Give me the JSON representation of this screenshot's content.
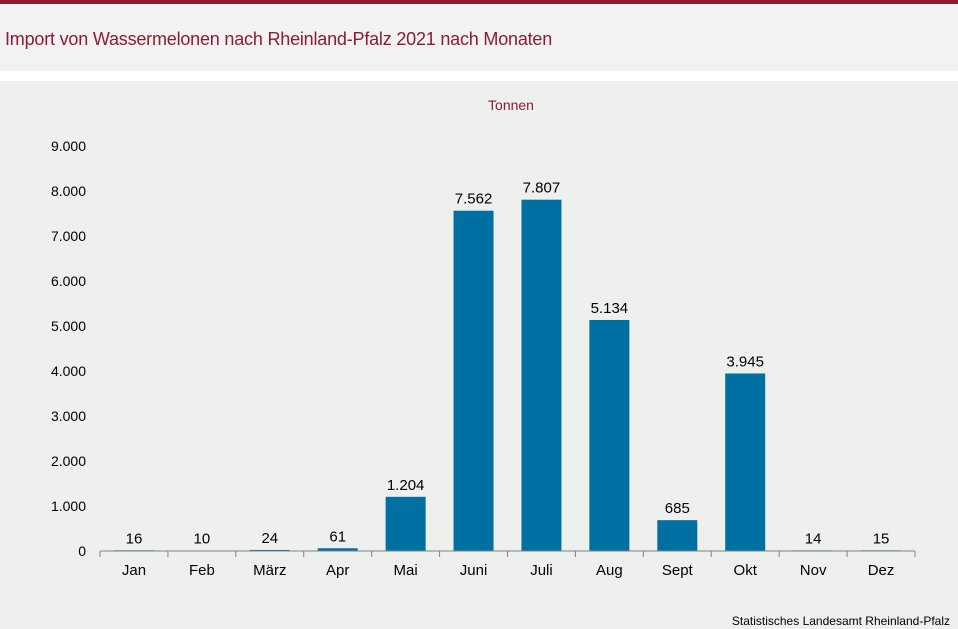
{
  "title": "Import von Wassermelonen nach Rheinland-Pfalz 2021 nach Monaten",
  "source": "Statistisches Landesamt Rheinland-Pfalz",
  "colors": {
    "bar": "#0070a3",
    "title": "#8c1c2f"
  },
  "chart_data": {
    "type": "bar",
    "title": "Import von Wassermelonen nach Rheinland-Pfalz 2021 nach Monaten",
    "unit_label": "Tonnen",
    "categories": [
      "Jan",
      "Feb",
      "März",
      "Apr",
      "Mai",
      "Juni",
      "Juli",
      "Aug",
      "Sept",
      "Okt",
      "Nov",
      "Dez"
    ],
    "values": [
      16,
      10,
      24,
      61,
      1204,
      7562,
      7807,
      5134,
      685,
      3945,
      14,
      15
    ],
    "value_labels": [
      "16",
      "10",
      "24",
      "61",
      "1.204",
      "7.562",
      "7.807",
      "5.134",
      "685",
      "3.945",
      "14",
      "15"
    ],
    "ylim": [
      0,
      9000
    ],
    "yticks": [
      0,
      1000,
      2000,
      3000,
      4000,
      5000,
      6000,
      7000,
      8000,
      9000
    ],
    "ytick_labels": [
      "0",
      "1.000",
      "2.000",
      "3.000",
      "4.000",
      "5.000",
      "6.000",
      "7.000",
      "8.000",
      "9.000"
    ],
    "grid": false,
    "legend": "none"
  }
}
